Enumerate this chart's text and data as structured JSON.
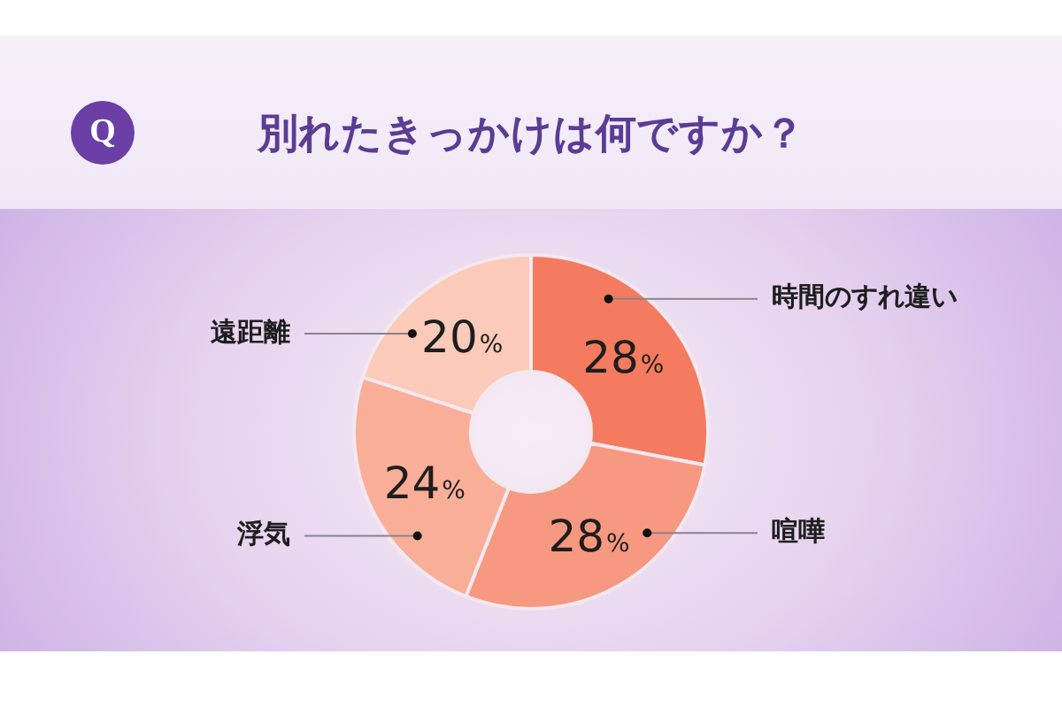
{
  "chart_data": {
    "type": "donut",
    "title": "別れたきっかけは何ですか？",
    "categories": [
      "時間のすれ違い",
      "喧嘩",
      "浮気",
      "遠距離"
    ],
    "values": [
      28,
      28,
      24,
      20
    ],
    "colors": [
      "#f47b5f",
      "#f79880",
      "#f9ae98",
      "#fbcab8"
    ],
    "value_labels": [
      "28%",
      "28%",
      "24%",
      "20%"
    ],
    "annotations": [
      "Q"
    ]
  }
}
